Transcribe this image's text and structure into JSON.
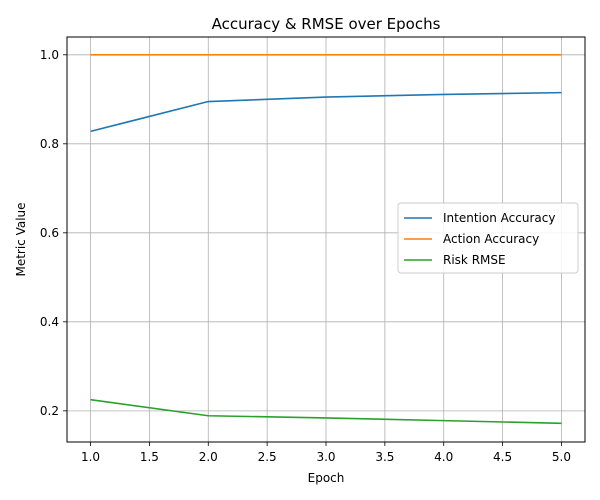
{
  "chart_data": {
    "type": "line",
    "title": "Accuracy & RMSE over Epochs",
    "xlabel": "Epoch",
    "ylabel": "Metric Value",
    "x": [
      1,
      2,
      3,
      4,
      5
    ],
    "xlim": [
      0.8,
      5.2
    ],
    "ylim": [
      0.13,
      1.04
    ],
    "xticks": [
      "1.0",
      "1.5",
      "2.0",
      "2.5",
      "3.0",
      "3.5",
      "4.0",
      "4.5",
      "5.0"
    ],
    "yticks": [
      "0.2",
      "0.4",
      "0.6",
      "0.8",
      "1.0"
    ],
    "grid": true,
    "legend_position": "center-right",
    "series": [
      {
        "name": "Intention Accuracy",
        "color": "#1f77b4",
        "values": [
          0.828,
          0.895,
          0.905,
          0.911,
          0.915
        ]
      },
      {
        "name": "Action Accuracy",
        "color": "#ff7f0e",
        "values": [
          1.0,
          1.0,
          1.0,
          1.0,
          1.0
        ]
      },
      {
        "name": "Risk RMSE",
        "color": "#2ca02c",
        "values": [
          0.225,
          0.189,
          0.184,
          0.178,
          0.172
        ]
      }
    ]
  }
}
